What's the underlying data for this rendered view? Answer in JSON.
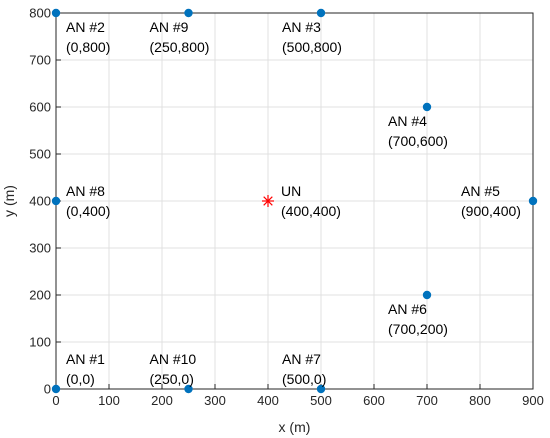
{
  "chart_data": {
    "type": "scatter",
    "title": "",
    "xlabel": "x (m)",
    "ylabel": "y (m)",
    "xlim": [
      0,
      900
    ],
    "ylim": [
      0,
      800
    ],
    "xticks": [
      0,
      100,
      200,
      300,
      400,
      500,
      600,
      700,
      800,
      900
    ],
    "yticks": [
      0,
      100,
      200,
      300,
      400,
      500,
      600,
      700,
      800
    ],
    "grid": true,
    "colors": {
      "anchor": "#0072BD",
      "user": "#FF0000",
      "grid": "#E0E0E0",
      "axis": "#262626"
    },
    "anchors": [
      {
        "x": 0,
        "y": 0,
        "name": "AN #1",
        "coord": "(0,0)",
        "label_side": "right-above"
      },
      {
        "x": 0,
        "y": 800,
        "name": "AN #2",
        "coord": "(0,800)",
        "label_side": "right-below"
      },
      {
        "x": 500,
        "y": 800,
        "name": "AN #3",
        "coord": "(500,800)",
        "label_side": "left-below"
      },
      {
        "x": 700,
        "y": 600,
        "name": "AN #4",
        "coord": "(700,600)",
        "label_side": "left-below"
      },
      {
        "x": 900,
        "y": 400,
        "name": "AN #5",
        "coord": "(900,400)",
        "label_side": "left-around"
      },
      {
        "x": 700,
        "y": 200,
        "name": "AN #6",
        "coord": "(700,200)",
        "label_side": "left-below"
      },
      {
        "x": 500,
        "y": 0,
        "name": "AN #7",
        "coord": "(500,0)",
        "label_side": "left-above"
      },
      {
        "x": 0,
        "y": 400,
        "name": "AN #8",
        "coord": "(0,400)",
        "label_side": "right-around"
      },
      {
        "x": 250,
        "y": 800,
        "name": "AN #9",
        "coord": "(250,800)",
        "label_side": "left-below"
      },
      {
        "x": 250,
        "y": 0,
        "name": "AN #10",
        "coord": "(250,0)",
        "label_side": "left-above"
      }
    ],
    "user": {
      "x": 400,
      "y": 400,
      "name": "UN",
      "coord": "(400,400)",
      "marker": "asterisk",
      "label_side": "right-around"
    }
  }
}
